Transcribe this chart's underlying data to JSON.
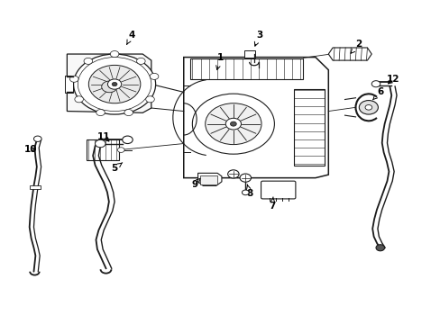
{
  "bg_color": "#ffffff",
  "line_color": "#1a1a1a",
  "fig_width": 4.89,
  "fig_height": 3.6,
  "dpi": 100,
  "label_positions": {
    "1": {
      "text": [
        0.5,
        0.83
      ],
      "arrow": [
        0.49,
        0.78
      ]
    },
    "2": {
      "text": [
        0.82,
        0.87
      ],
      "arrow": [
        0.8,
        0.84
      ]
    },
    "3": {
      "text": [
        0.59,
        0.9
      ],
      "arrow": [
        0.577,
        0.855
      ]
    },
    "4": {
      "text": [
        0.295,
        0.9
      ],
      "arrow": [
        0.28,
        0.862
      ]
    },
    "5": {
      "text": [
        0.255,
        0.48
      ],
      "arrow": [
        0.278,
        0.503
      ]
    },
    "6": {
      "text": [
        0.87,
        0.72
      ],
      "arrow": [
        0.852,
        0.695
      ]
    },
    "7": {
      "text": [
        0.62,
        0.36
      ],
      "arrow": [
        0.622,
        0.39
      ]
    },
    "8": {
      "text": [
        0.568,
        0.4
      ],
      "arrow": [
        0.562,
        0.43
      ]
    },
    "9": {
      "text": [
        0.44,
        0.43
      ],
      "arrow": [
        0.455,
        0.45
      ]
    },
    "10": {
      "text": [
        0.06,
        0.54
      ],
      "arrow": [
        0.08,
        0.54
      ]
    },
    "11": {
      "text": [
        0.23,
        0.58
      ],
      "arrow": [
        0.248,
        0.558
      ]
    },
    "12": {
      "text": [
        0.9,
        0.76
      ],
      "arrow": [
        0.882,
        0.74
      ]
    }
  }
}
